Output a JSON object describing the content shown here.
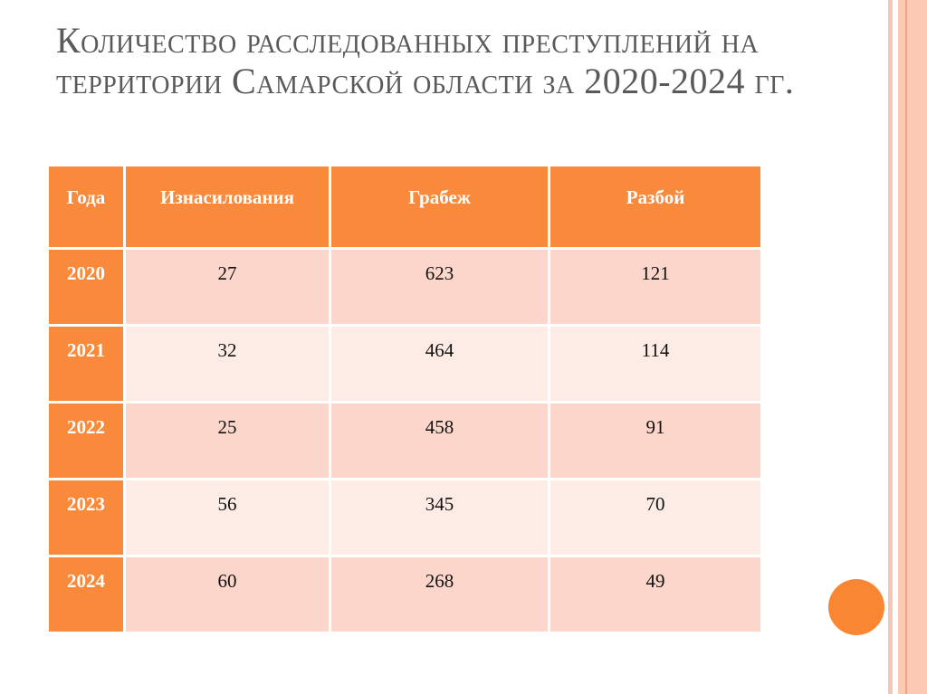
{
  "title": "Количество расследованных преступлений на территории Самарской области за 2020-2024 гг.",
  "table": {
    "headers": [
      "Года",
      "Изнасилования",
      "Грабеж",
      "Разбой"
    ],
    "rows": [
      [
        "2020",
        "27",
        "623",
        "121"
      ],
      [
        "2021",
        "32",
        "464",
        "114"
      ],
      [
        "2022",
        "25",
        "458",
        "91"
      ],
      [
        "2023",
        "56",
        "345",
        "70"
      ],
      [
        "2024",
        "60",
        "268",
        "49"
      ]
    ]
  },
  "colors": {
    "accent": "#f98a3c",
    "row_odd": "#fcd6cb",
    "row_even": "#fdebe5"
  }
}
